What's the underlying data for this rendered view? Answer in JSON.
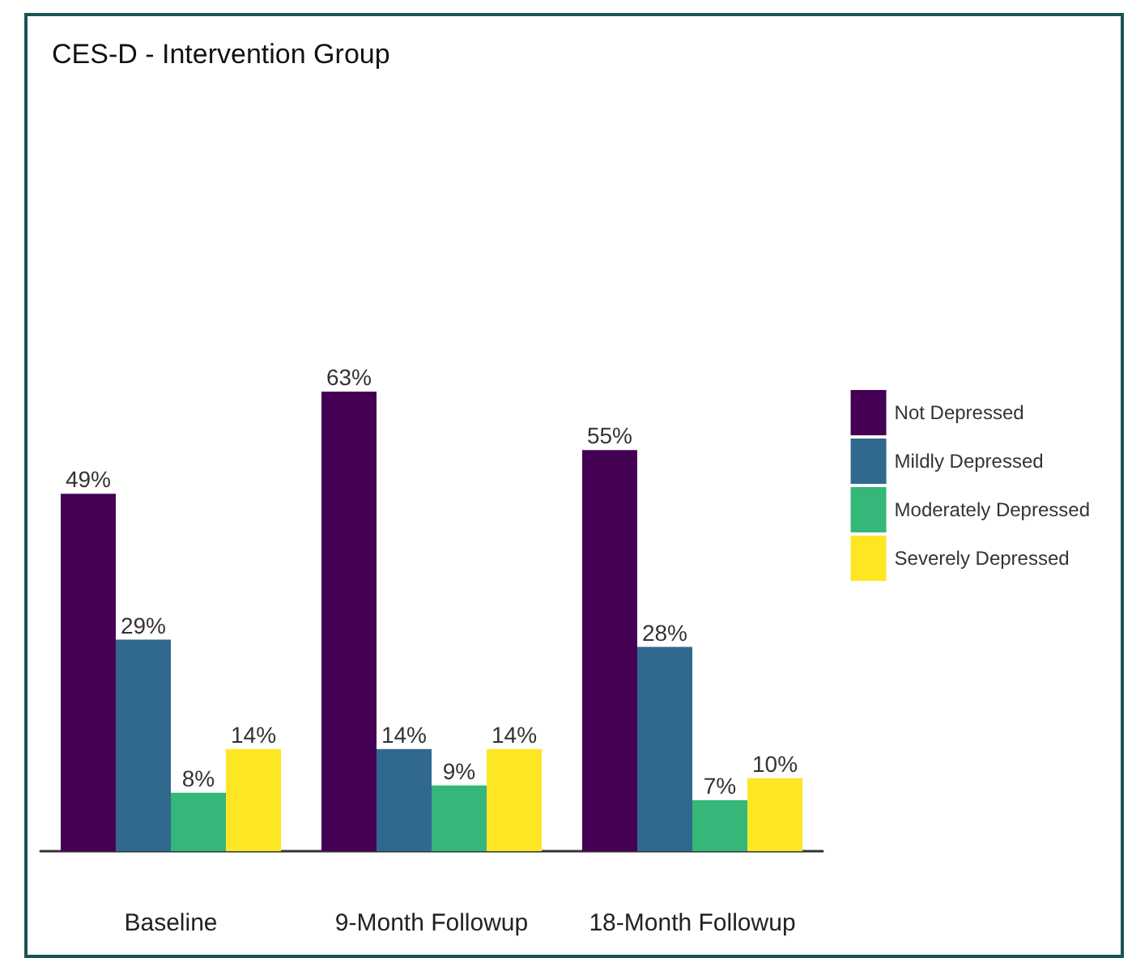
{
  "chart_data": {
    "type": "bar",
    "title": "CES-D - Intervention Group",
    "categories": [
      "Baseline",
      "9-Month Followup",
      "18-Month Followup"
    ],
    "series": [
      {
        "name": "Not Depressed",
        "color": "#440154",
        "values": [
          49,
          63,
          55
        ],
        "value_labels": [
          "49%",
          "63%",
          "55%"
        ]
      },
      {
        "name": "Mildly Depressed",
        "color": "#31688e",
        "values": [
          29,
          14,
          28
        ],
        "value_labels": [
          "29%",
          "14%",
          "28%"
        ]
      },
      {
        "name": "Moderately Depressed",
        "color": "#35b779",
        "values": [
          8,
          9,
          7
        ],
        "value_labels": [
          "8%",
          "9%",
          "7%"
        ]
      },
      {
        "name": "Severely Depressed",
        "color": "#fde725",
        "values": [
          14,
          14,
          10
        ],
        "value_labels": [
          "14%",
          "14%",
          "10%"
        ]
      }
    ],
    "legend": "right",
    "tick_labels": "x"
  }
}
